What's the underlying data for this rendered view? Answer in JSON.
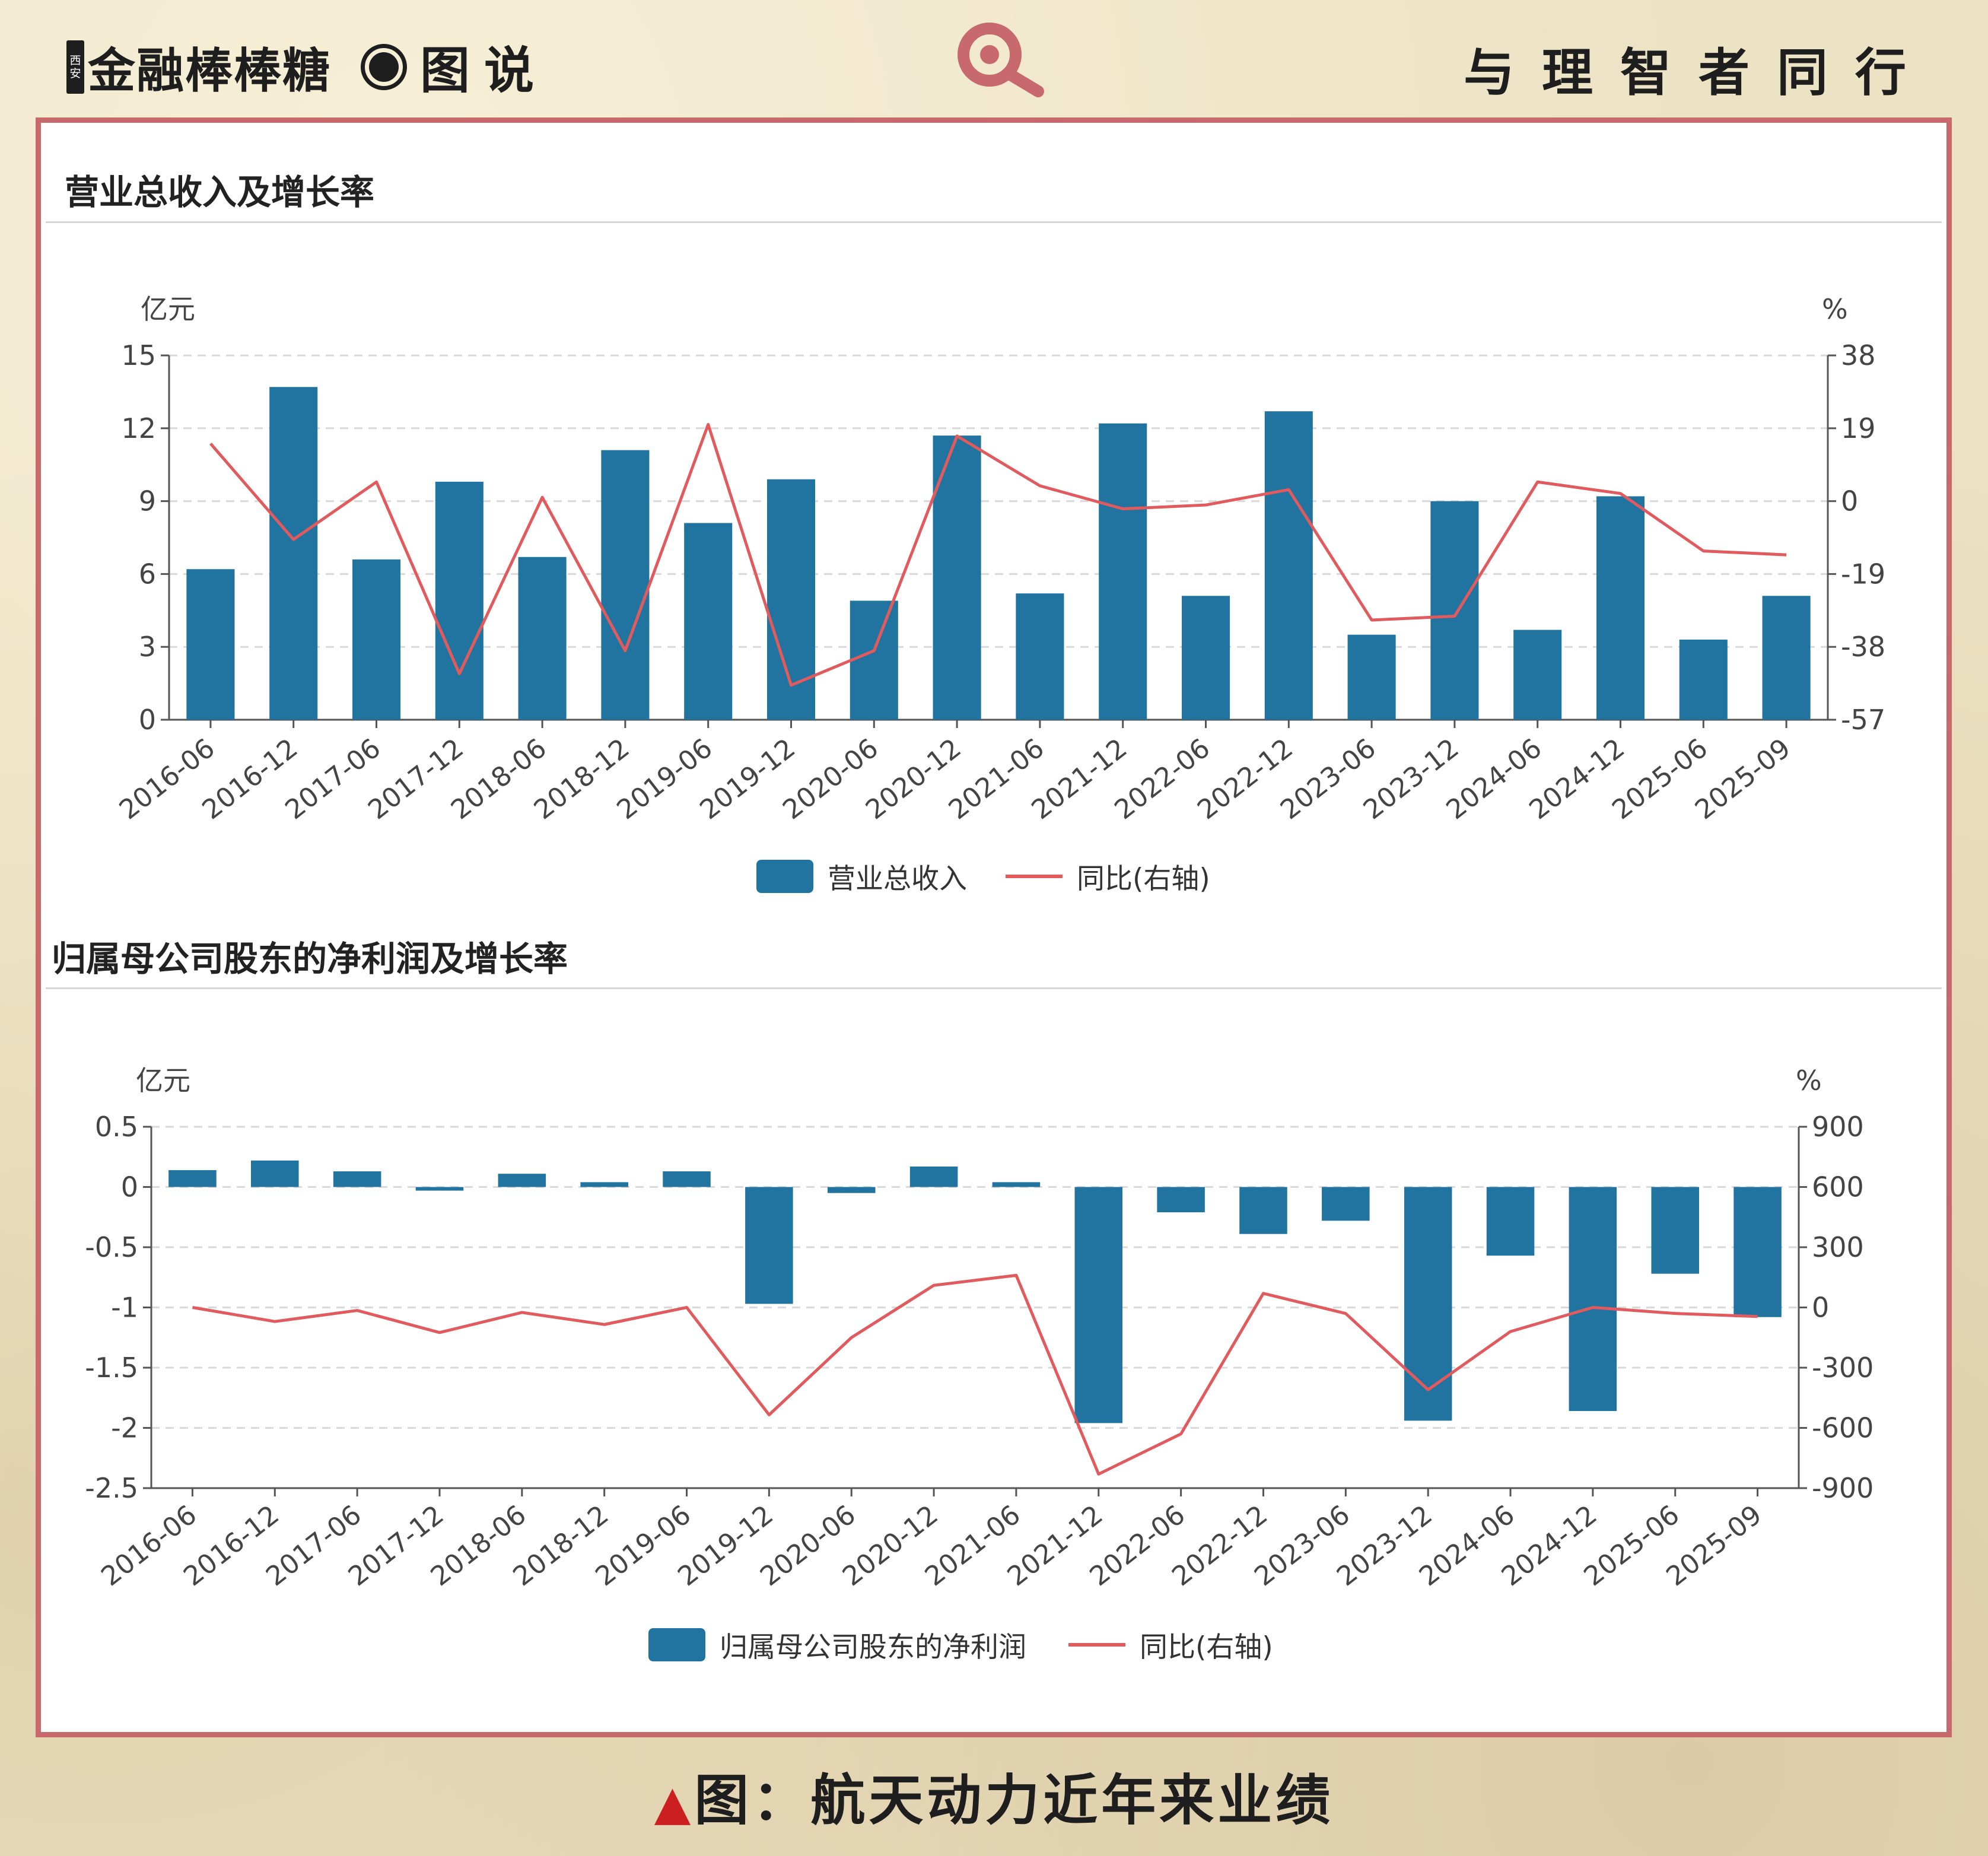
{
  "header": {
    "brand_badge_top": "西",
    "brand_badge_bottom": "安",
    "brand_name": "金融棒棒糖",
    "brand_tag": "图说",
    "motto": "与理智者同行"
  },
  "caption": {
    "marker": "▲",
    "text": "图：航天动力近年来业绩"
  },
  "colors": {
    "bar": "#21749f",
    "line": "#e05a5e",
    "frame": "#c8696d"
  },
  "chart_data": [
    {
      "type": "bar",
      "title": "营业总收入及增长率",
      "categories": [
        "2016-06",
        "2016-12",
        "2017-06",
        "2017-12",
        "2018-06",
        "2018-12",
        "2019-06",
        "2019-12",
        "2020-06",
        "2020-12",
        "2021-06",
        "2021-12",
        "2022-06",
        "2022-12",
        "2023-06",
        "2023-12",
        "2024-06",
        "2024-12",
        "2025-06",
        "2025-09"
      ],
      "y_unit_left": "亿元",
      "y_unit_right": "%",
      "ylim_left": [
        0,
        15
      ],
      "yticks_left": [
        "0",
        "3",
        "6",
        "9",
        "12",
        "15"
      ],
      "ylim_right": [
        -57,
        38
      ],
      "yticks_right": [
        "-57",
        "-38",
        "-19",
        "0",
        "19",
        "38"
      ],
      "grid": true,
      "legend_position": "bottom-center",
      "series": [
        {
          "name": "营业总收入",
          "type": "bar",
          "axis": "left",
          "values": [
            6.2,
            13.7,
            6.6,
            9.8,
            6.7,
            11.1,
            8.1,
            9.9,
            4.9,
            11.7,
            5.2,
            12.2,
            5.1,
            12.7,
            3.5,
            9.0,
            3.7,
            9.2,
            3.3,
            5.1
          ]
        },
        {
          "name": "同比(右轴)",
          "type": "line",
          "axis": "right",
          "values": [
            15,
            -10,
            5,
            -45,
            1,
            -39,
            20,
            -48,
            -39,
            17,
            4,
            -2,
            -1,
            3,
            -31,
            -30,
            5,
            2,
            -13,
            -14
          ]
        }
      ]
    },
    {
      "type": "bar",
      "title": "归属母公司股东的净利润及增长率",
      "categories": [
        "2016-06",
        "2016-12",
        "2017-06",
        "2017-12",
        "2018-06",
        "2018-12",
        "2019-06",
        "2019-12",
        "2020-06",
        "2020-12",
        "2021-06",
        "2021-12",
        "2022-06",
        "2022-12",
        "2023-06",
        "2023-12",
        "2024-06",
        "2024-12",
        "2025-06",
        "2025-09"
      ],
      "y_unit_left": "亿元",
      "y_unit_right": "%",
      "ylim_left": [
        -2.5,
        0.5
      ],
      "yticks_left": [
        "-2.5",
        "-2",
        "-1.5",
        "-1",
        "-0.5",
        "0",
        "0.5"
      ],
      "ylim_right": [
        -900,
        900
      ],
      "yticks_right": [
        "-900",
        "-600",
        "-300",
        "0",
        "300",
        "600",
        "900"
      ],
      "grid": true,
      "legend_position": "bottom-center",
      "series": [
        {
          "name": "归属母公司股东的净利润",
          "type": "bar",
          "axis": "left",
          "values": [
            0.14,
            0.22,
            0.13,
            -0.03,
            0.11,
            0.04,
            0.13,
            -0.97,
            -0.05,
            0.17,
            0.04,
            -1.96,
            -0.21,
            -0.39,
            -0.28,
            -1.94,
            -0.57,
            -1.86,
            -0.72,
            -1.08
          ]
        },
        {
          "name": "同比(右轴)",
          "type": "line",
          "axis": "right",
          "values": [
            0,
            -70,
            -15,
            -125,
            -25,
            -85,
            0,
            -535,
            -150,
            110,
            160,
            -830,
            -630,
            70,
            -30,
            -410,
            -120,
            0,
            -30,
            -45
          ]
        }
      ]
    }
  ]
}
